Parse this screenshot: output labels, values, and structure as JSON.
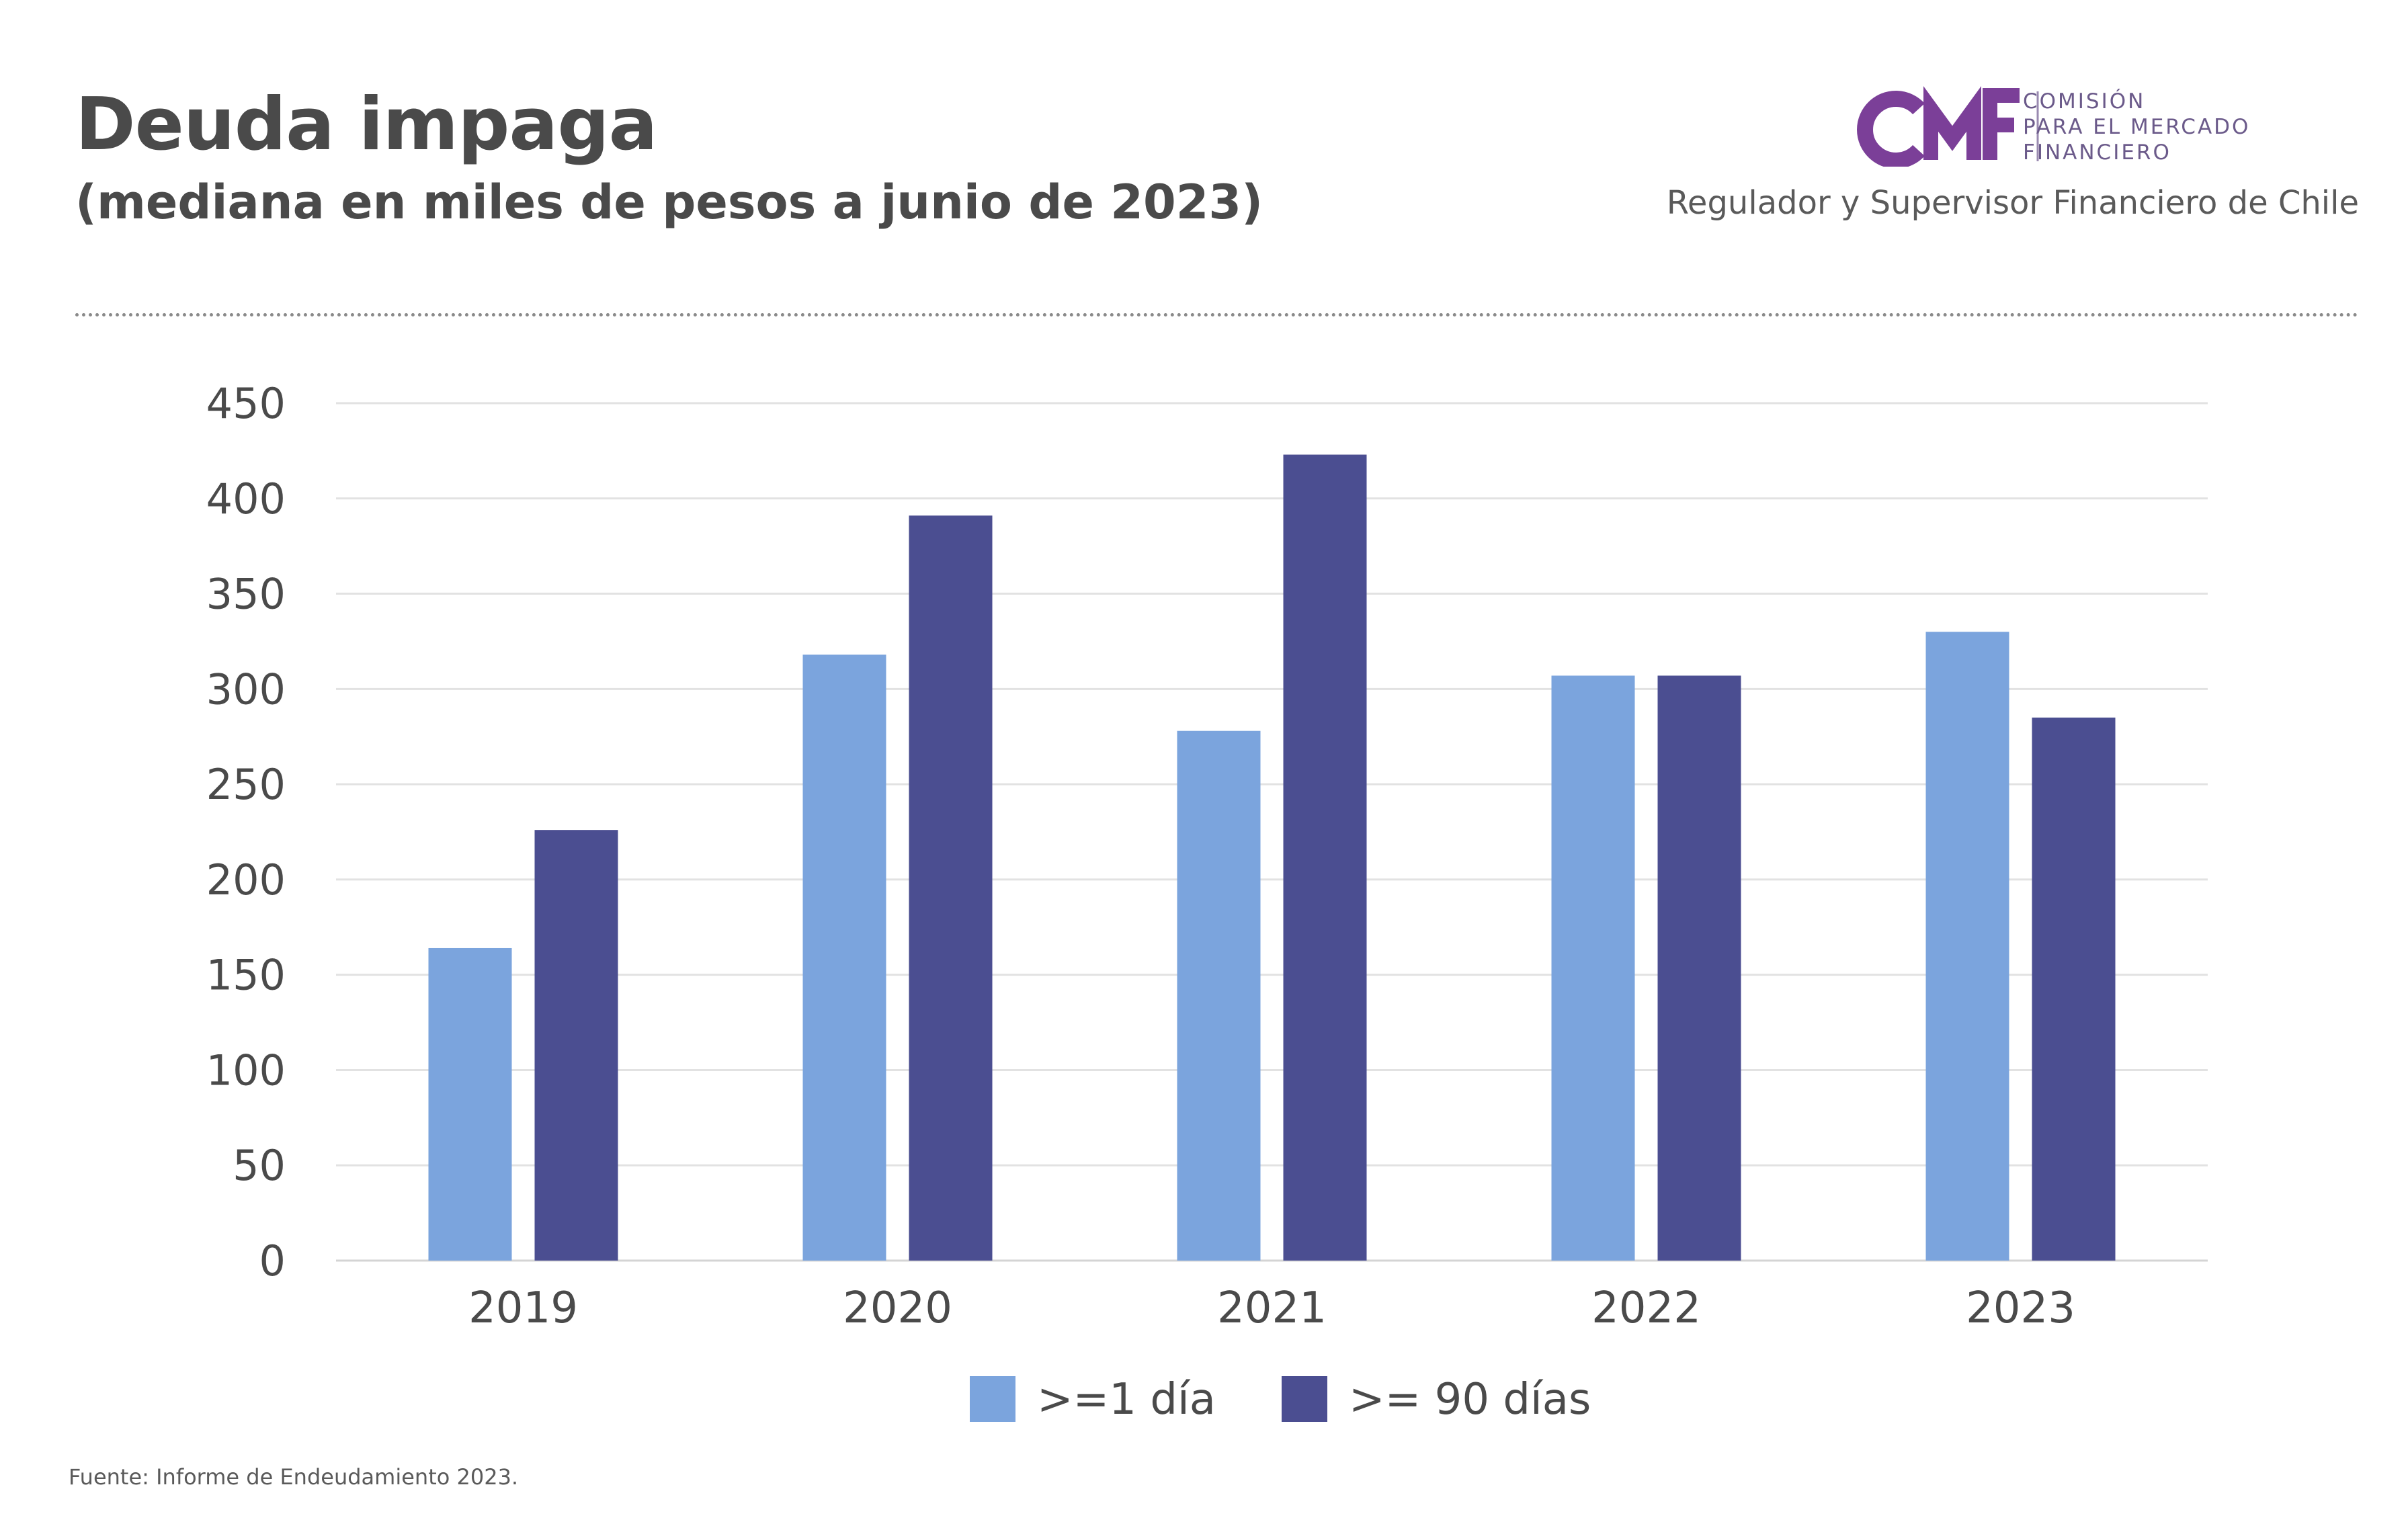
{
  "header": {
    "title": "Deuda impaga",
    "subtitle": "(mediana en miles de pesos a junio de 2023)"
  },
  "brand": {
    "logo_lines": [
      "COMISIÓN",
      "PARA EL MERCADO",
      "FINANCIERO"
    ],
    "tagline": "Regulador y Supervisor Financiero de Chile",
    "logo_color": "#7b3f98"
  },
  "footer": {
    "source": "Fuente: Informe de Endeudamiento 2023."
  },
  "chart_data": {
    "type": "bar",
    "title": "Deuda impaga",
    "subtitle": "(mediana en miles de pesos a junio de 2023)",
    "categories": [
      "2019",
      "2020",
      "2021",
      "2022",
      "2023"
    ],
    "series": [
      {
        "name": ">=1 día",
        "values": [
          164,
          318,
          278,
          307,
          330
        ],
        "color": "#7ba4dd"
      },
      {
        "name": ">= 90 días",
        "values": [
          226,
          391,
          423,
          307,
          285
        ],
        "color": "#4b4e91"
      }
    ],
    "ylim": [
      0,
      450
    ],
    "yticks": [
      0,
      50,
      100,
      150,
      200,
      250,
      300,
      350,
      400,
      450
    ],
    "grid": true,
    "legend": "bottom-center"
  }
}
